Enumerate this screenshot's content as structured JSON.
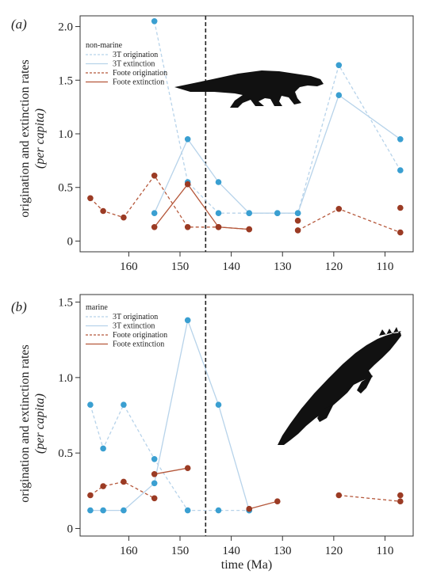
{
  "colors": {
    "blue": "#3a9fd1",
    "blue_line": "#b7d3ea",
    "red": "#9b3b24",
    "red_line": "#b5573a",
    "boundary": "#222222"
  },
  "shared": {
    "xlabel": "time (Ma)",
    "ylabel_main": "origination and extinction rates",
    "ylabel_italic": "(per capita)",
    "boundary_x": 145,
    "xlim": [
      169.5,
      104.5
    ],
    "xticks": [
      160,
      150,
      140,
      130,
      120,
      110
    ]
  },
  "chart_data": [
    {
      "type": "line",
      "panel": "(a)",
      "legend_title": "non-marine",
      "legend_position": "top-left",
      "ylim": [
        -0.1,
        2.1
      ],
      "yticks": [
        0,
        0.5,
        1.0,
        1.5,
        2.0
      ],
      "ytick_labels": [
        "0",
        "0.5",
        "1.0",
        "1.5",
        "2.0"
      ],
      "silhouette": "crocodyliform-icon",
      "series": [
        {
          "name": "3T origination",
          "color": "blue",
          "dash": "dashed",
          "segments": [
            [
              [
                155,
                2.05
              ],
              [
                148.5,
                0.55
              ],
              [
                142.5,
                0.26
              ],
              [
                136.5,
                0.26
              ],
              [
                131,
                0.26
              ],
              [
                127,
                0.26
              ],
              [
                119,
                1.64
              ],
              [
                107,
                0.66
              ]
            ]
          ]
        },
        {
          "name": "3T extinction",
          "color": "blue",
          "dash": "solid",
          "segments": [
            [
              [
                155,
                0.26
              ],
              [
                148.5,
                0.95
              ],
              [
                142.5,
                0.55
              ],
              [
                136.5,
                0.26
              ],
              [
                131,
                0.26
              ],
              [
                127,
                0.26
              ],
              [
                119,
                1.36
              ],
              [
                107,
                0.95
              ]
            ]
          ]
        },
        {
          "name": "Foote origination",
          "color": "red",
          "dash": "dashed",
          "segments": [
            [
              [
                167.5,
                0.4
              ],
              [
                165,
                0.28
              ],
              [
                161,
                0.22
              ],
              [
                155,
                0.61
              ],
              [
                148.5,
                0.13
              ],
              [
                142.5,
                0.13
              ],
              [
                136.5,
                0.11
              ]
            ],
            [
              [
                127,
                0.1
              ],
              [
                119,
                0.3
              ],
              [
                107,
                0.08
              ]
            ]
          ]
        },
        {
          "name": "Foote extinction",
          "color": "red",
          "dash": "solid",
          "segments": [
            [
              [
                155,
                0.13
              ],
              [
                148.5,
                0.53
              ],
              [
                142.5,
                0.13
              ],
              [
                136.5,
                0.11
              ]
            ],
            [
              [
                127,
                0.19
              ]
            ],
            [
              [
                107,
                0.31
              ]
            ]
          ]
        }
      ]
    },
    {
      "type": "line",
      "panel": "(b)",
      "legend_title": "marine",
      "legend_position": "top-left",
      "ylim": [
        -0.05,
        1.55
      ],
      "yticks": [
        0,
        0.5,
        1.0,
        1.5
      ],
      "ytick_labels": [
        "0",
        "0.5",
        "1.0",
        "1.5"
      ],
      "silhouette": "marine-crocodyliform-icon",
      "series": [
        {
          "name": "3T origination",
          "color": "blue",
          "dash": "dashed",
          "segments": [
            [
              [
                167.5,
                0.82
              ],
              [
                165,
                0.53
              ],
              [
                161,
                0.82
              ],
              [
                155,
                0.46
              ],
              [
                148.5,
                0.12
              ],
              [
                142.5,
                0.12
              ],
              [
                136.5,
                0.12
              ]
            ]
          ]
        },
        {
          "name": "3T extinction",
          "color": "blue",
          "dash": "solid",
          "segments": [
            [
              [
                167.5,
                0.12
              ],
              [
                165,
                0.12
              ],
              [
                161,
                0.12
              ],
              [
                155,
                0.3
              ],
              [
                148.5,
                1.38
              ],
              [
                142.5,
                0.82
              ],
              [
                136.5,
                0.12
              ]
            ]
          ]
        },
        {
          "name": "Foote origination",
          "color": "red",
          "dash": "dashed",
          "segments": [
            [
              [
                167.5,
                0.22
              ],
              [
                165,
                0.28
              ],
              [
                161,
                0.31
              ],
              [
                155,
                0.2
              ]
            ],
            [
              [
                119,
                0.22
              ],
              [
                107,
                0.18
              ]
            ]
          ]
        },
        {
          "name": "Foote extinction",
          "color": "red",
          "dash": "solid",
          "segments": [
            [
              [
                155,
                0.36
              ],
              [
                148.5,
                0.4
              ]
            ],
            [
              [
                136.5,
                0.13
              ],
              [
                131,
                0.18
              ]
            ],
            [
              [
                107,
                0.22
              ]
            ]
          ]
        }
      ]
    }
  ]
}
